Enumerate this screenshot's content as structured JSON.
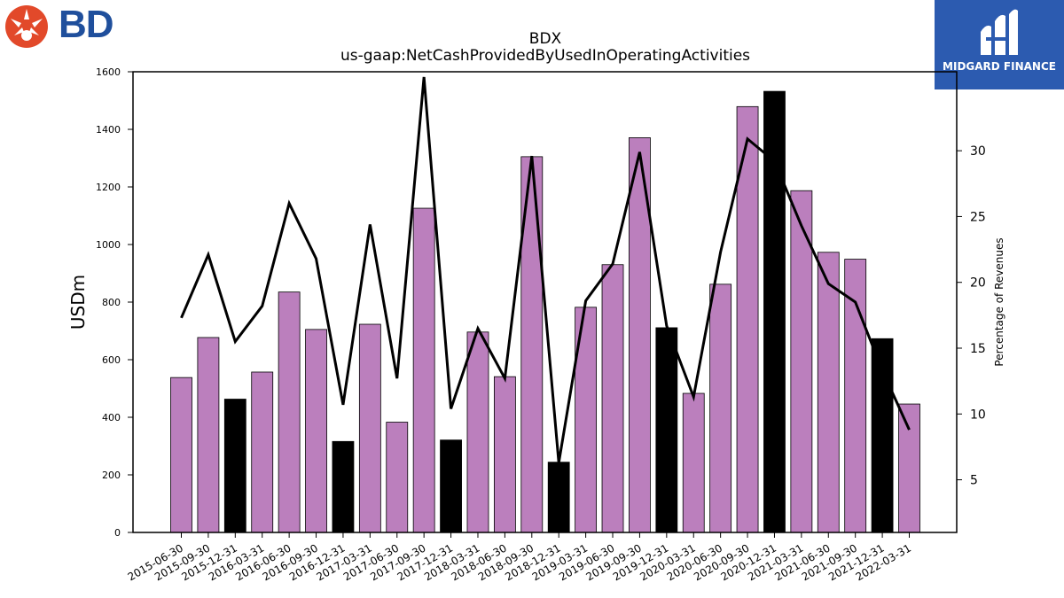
{
  "branding": {
    "left_logo_text": "BD",
    "right_logo_text": "MIDGARD FINANCE",
    "left_logo_color": "#e2492a",
    "left_text_color": "#1f4f9c",
    "right_bg_color": "#2c5bb0"
  },
  "chart_data": {
    "type": "bar",
    "title": "BDX",
    "subtitle": "us-gaap:NetCashProvidedByUsedInOperatingActivities",
    "ylabel": "USDm",
    "y2label": "Percentage of Revenues",
    "ylim": [
      0,
      1600
    ],
    "y2lim": [
      1,
      36
    ],
    "yticks": [
      0,
      200,
      400,
      600,
      800,
      1000,
      1200,
      1400,
      1600
    ],
    "y2ticks": [
      5,
      10,
      15,
      20,
      25,
      30
    ],
    "categories": [
      "2015-06-30",
      "2015-09-30",
      "2015-12-31",
      "2016-03-31",
      "2016-06-30",
      "2016-09-30",
      "2016-12-31",
      "2017-03-31",
      "2017-06-30",
      "2017-09-30",
      "2017-12-31",
      "2018-03-31",
      "2018-06-30",
      "2018-09-30",
      "2018-12-31",
      "2019-03-31",
      "2019-06-30",
      "2019-09-30",
      "2019-12-31",
      "2020-03-31",
      "2020-06-30",
      "2020-09-30",
      "2020-12-31",
      "2021-03-31",
      "2021-06-30",
      "2021-09-30",
      "2021-12-31",
      "2022-03-31"
    ],
    "series": [
      {
        "type": "bar",
        "values": [
          538,
          677,
          463,
          557,
          835,
          705,
          316,
          723,
          383,
          1126,
          321,
          696,
          541,
          1305,
          244,
          782,
          930,
          1371,
          711,
          483,
          862,
          1479,
          1532,
          1187,
          973,
          949,
          673,
          446
        ],
        "colors": [
          "#bb7fbd",
          "#bb7fbd",
          "#000000",
          "#bb7fbd",
          "#bb7fbd",
          "#bb7fbd",
          "#000000",
          "#bb7fbd",
          "#bb7fbd",
          "#bb7fbd",
          "#000000",
          "#bb7fbd",
          "#bb7fbd",
          "#bb7fbd",
          "#000000",
          "#bb7fbd",
          "#bb7fbd",
          "#bb7fbd",
          "#000000",
          "#bb7fbd",
          "#bb7fbd",
          "#bb7fbd",
          "#000000",
          "#bb7fbd",
          "#bb7fbd",
          "#bb7fbd",
          "#000000",
          "#bb7fbd"
        ]
      },
      {
        "type": "line",
        "axis": "right",
        "color": "#000000",
        "values": [
          17.3,
          22.1,
          15.5,
          18.2,
          26.0,
          21.8,
          10.7,
          24.4,
          12.7,
          35.6,
          10.4,
          16.5,
          12.7,
          29.6,
          6.3,
          18.6,
          21.4,
          29.9,
          16.7,
          11.3,
          22.3,
          30.9,
          29.2,
          24.3,
          19.9,
          18.5,
          13.3,
          8.8
        ]
      }
    ],
    "grid": false,
    "legend": "none"
  }
}
